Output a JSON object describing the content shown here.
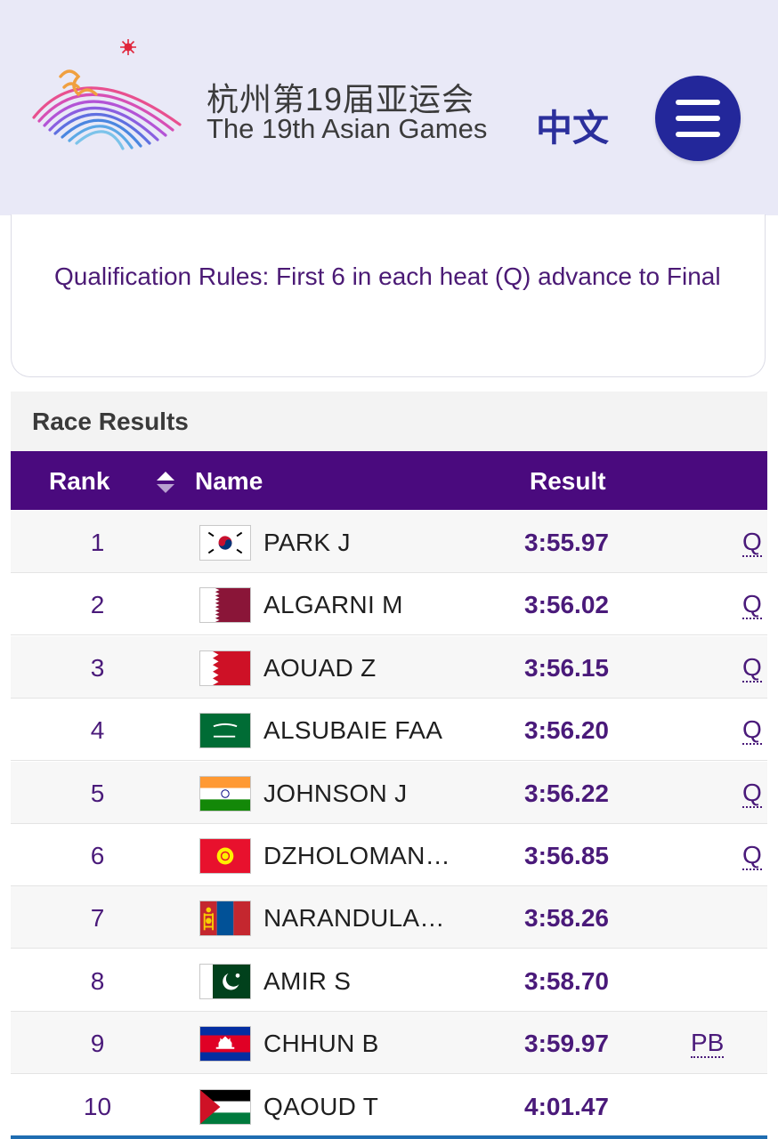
{
  "header": {
    "brand_cn": "杭州第19届亚运会",
    "brand_en": "The 19th Asian Games",
    "lang_toggle": "中文"
  },
  "qualification": {
    "text": "Qualification Rules: First 6 in each heat (Q) advance to Final"
  },
  "results": {
    "title": "Race Results",
    "columns": {
      "rank": "Rank",
      "name": "Name",
      "result": "Result"
    },
    "rows": [
      {
        "rank": "1",
        "flag": "korea-flag-icon",
        "name": "PARK J",
        "result": "3:55.97",
        "mark": "Q"
      },
      {
        "rank": "2",
        "flag": "qatar-flag-icon",
        "name": "ALGARNI M",
        "result": "3:56.02",
        "mark": "Q"
      },
      {
        "rank": "3",
        "flag": "bahrain-flag-icon",
        "name": "AOUAD Z",
        "result": "3:56.15",
        "mark": "Q"
      },
      {
        "rank": "4",
        "flag": "saudi-arabia-flag-icon",
        "name": "ALSUBAIE FAA",
        "result": "3:56.20",
        "mark": "Q"
      },
      {
        "rank": "5",
        "flag": "india-flag-icon",
        "name": "JOHNSON J",
        "result": "3:56.22",
        "mark": "Q"
      },
      {
        "rank": "6",
        "flag": "kyrgyzstan-flag-icon",
        "name": "DZHOLOMAN…",
        "result": "3:56.85",
        "mark": "Q"
      },
      {
        "rank": "7",
        "flag": "mongolia-flag-icon",
        "name": "NARANDULA…",
        "result": "3:58.26",
        "mark": ""
      },
      {
        "rank": "8",
        "flag": "pakistan-flag-icon",
        "name": "AMIR S",
        "result": "3:58.70",
        "mark": ""
      },
      {
        "rank": "9",
        "flag": "cambodia-flag-icon",
        "name": "CHHUN B",
        "result": "3:59.97",
        "mark": "PB"
      },
      {
        "rank": "10",
        "flag": "palestine-flag-icon",
        "name": "QAOUD T",
        "result": "4:01.47",
        "mark": ""
      }
    ]
  },
  "colors": {
    "header_bg": "#e9e9f7",
    "accent_purple": "#4a0a7e",
    "menu_blue": "#23279a"
  }
}
